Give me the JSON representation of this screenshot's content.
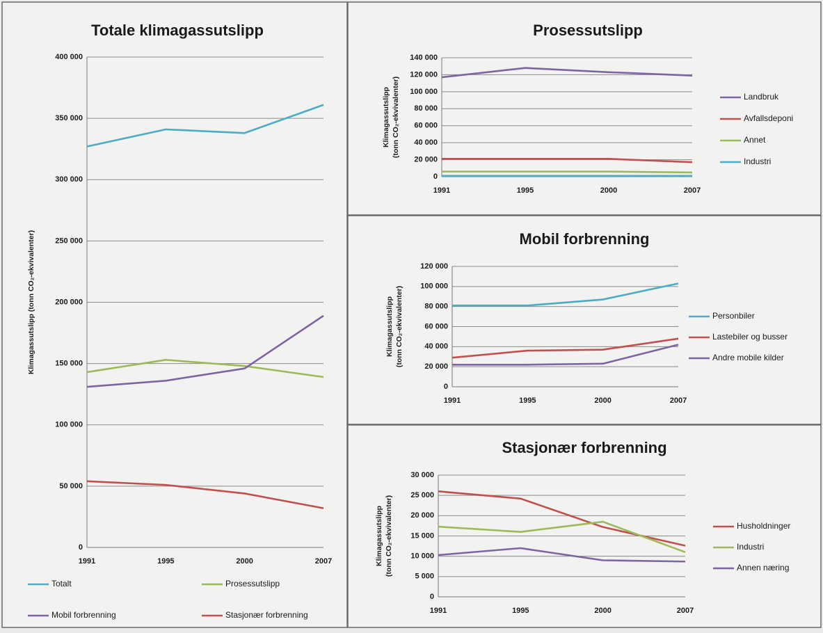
{
  "chart_data": [
    {
      "type": "line",
      "title": "Totale klimagassutslipp",
      "ylabel": "Klimagassutslipp  (tonn CO₂-ekvivalenter)",
      "categories": [
        "1991",
        "1995",
        "2000",
        "2007"
      ],
      "ylim": [
        0,
        400000
      ],
      "yticks": [
        0,
        {
          "value": 50000,
          "label": "50 000"
        },
        {
          "value": 100000,
          "label": "100 000"
        },
        {
          "value": 150000,
          "label": "150 000"
        },
        {
          "value": 200000,
          "label": "200 000"
        },
        {
          "value": 250000,
          "label": "250 000"
        },
        {
          "value": 300000,
          "label": "300 000"
        },
        {
          "value": 350000,
          "label": "350 000"
        },
        {
          "value": 400000,
          "label": "400 000"
        }
      ],
      "grid": true,
      "legend": "bottom",
      "series": [
        {
          "name": "Totalt",
          "color": "#4bacc6",
          "values": [
            327000,
            341000,
            338000,
            361000
          ]
        },
        {
          "name": "Prosessutslipp",
          "color": "#9bbb59",
          "values": [
            143000,
            153000,
            148000,
            139000
          ]
        },
        {
          "name": "Mobil forbrenning",
          "color": "#8064a2",
          "values": [
            131000,
            136000,
            146000,
            189000
          ]
        },
        {
          "name": "Stasjonær forbrenning",
          "color": "#c0504d",
          "values": [
            54000,
            51000,
            44000,
            32000
          ]
        }
      ]
    },
    {
      "type": "line",
      "title": "Prosessutslipp",
      "ylabel": [
        "Klimagassutslipp",
        "(tonn CO₂-ekvivalenter)"
      ],
      "categories": [
        "1991",
        "1995",
        "2000",
        "2007"
      ],
      "ylim": [
        0,
        140000
      ],
      "yticks": [
        0,
        {
          "value": 20000,
          "label": "20 000"
        },
        {
          "value": 40000,
          "label": "40 000"
        },
        {
          "value": 60000,
          "label": "60 000"
        },
        {
          "value": 80000,
          "label": "80 000"
        },
        {
          "value": 100000,
          "label": "100 000"
        },
        {
          "value": 120000,
          "label": "120 000"
        },
        {
          "value": 140000,
          "label": "140 000"
        }
      ],
      "grid": true,
      "legend": "right",
      "series": [
        {
          "name": "Landbruk",
          "color": "#8064a2",
          "values": [
            117000,
            128000,
            123000,
            119000
          ]
        },
        {
          "name": "Avfallsdeponi",
          "color": "#c0504d",
          "values": [
            21000,
            21000,
            21000,
            17000
          ]
        },
        {
          "name": "Annet",
          "color": "#9bbb59",
          "values": [
            6000,
            6000,
            6000,
            5000
          ]
        },
        {
          "name": "Industri",
          "color": "#4bacc6",
          "values": [
            1000,
            1000,
            1000,
            1000
          ]
        }
      ]
    },
    {
      "type": "line",
      "title": "Mobil forbrenning",
      "ylabel": [
        "Klimagassutslipp",
        "(tonn CO₂-ekvivalenter)"
      ],
      "categories": [
        "1991",
        "1995",
        "2000",
        "2007"
      ],
      "ylim": [
        0,
        120000
      ],
      "yticks": [
        0,
        {
          "value": 20000,
          "label": "20 000"
        },
        {
          "value": 40000,
          "label": "40 000"
        },
        {
          "value": 60000,
          "label": "60 000"
        },
        {
          "value": 80000,
          "label": "80 000"
        },
        {
          "value": 100000,
          "label": "100 000"
        },
        {
          "value": 120000,
          "label": "120 000"
        }
      ],
      "grid": true,
      "legend": "right",
      "series": [
        {
          "name": "Personbiler",
          "color": "#4bacc6",
          "values": [
            81000,
            81000,
            87000,
            103000
          ]
        },
        {
          "name": "Lastebiler og busser",
          "color": "#c0504d",
          "values": [
            29000,
            36000,
            37000,
            48000
          ]
        },
        {
          "name": "Andre mobile kilder",
          "color": "#8064a2",
          "values": [
            22000,
            22000,
            23000,
            42000
          ]
        }
      ]
    },
    {
      "type": "line",
      "title": "Stasjonær forbrenning",
      "ylabel": [
        "Klimagassutslipp",
        "(tonn CO₂-ekvivalenter)"
      ],
      "categories": [
        "1991",
        "1995",
        "2000",
        "2007"
      ],
      "ylim": [
        0,
        30000
      ],
      "yticks": [
        0,
        {
          "value": 5000,
          "label": "5 000"
        },
        {
          "value": 10000,
          "label": "10 000"
        },
        {
          "value": 15000,
          "label": "15 000"
        },
        {
          "value": 20000,
          "label": "20 000"
        },
        {
          "value": 25000,
          "label": "25 000"
        },
        {
          "value": 30000,
          "label": "30 000"
        }
      ],
      "grid": true,
      "legend": "right",
      "series": [
        {
          "name": "Husholdninger",
          "color": "#c0504d",
          "values": [
            26000,
            24200,
            17200,
            12600
          ]
        },
        {
          "name": "Industri",
          "color": "#9bbb59",
          "values": [
            17300,
            16000,
            18500,
            11000
          ]
        },
        {
          "name": "Annen næring",
          "color": "#8064a2",
          "values": [
            10300,
            12000,
            9000,
            8700
          ]
        }
      ]
    }
  ]
}
